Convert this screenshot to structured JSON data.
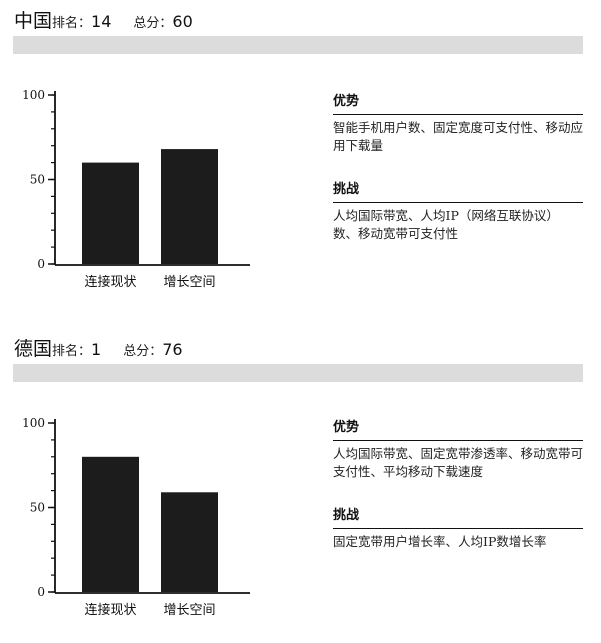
{
  "colors": {
    "bar": "#1c1c1c",
    "header_band": "#dcdcdc"
  },
  "countries": [
    {
      "name": "中国",
      "rank_label": "排名：",
      "rank": "14",
      "score_label": "总分：",
      "score": "60",
      "strengths_title": "优势",
      "strengths_text": "智能手机用户数、固定宽度可支付性、移动应用下载量",
      "challenges_title": "挑战",
      "challenges_text": "人均国际带宽、人均IP（网络互联协议）数、移动宽带可支付性"
    },
    {
      "name": "德国",
      "rank_label": "排名：",
      "rank": "1",
      "score_label": "总分：",
      "score": "76",
      "strengths_title": "优势",
      "strengths_text": "人均国际带宽、固定宽带渗透率、移动宽带可支付性、平均移动下载速度",
      "challenges_title": "挑战",
      "challenges_text": "固定宽带用户增长率、人均IP数增长率"
    }
  ],
  "chart_data": [
    {
      "type": "bar",
      "categories": [
        "连接现状",
        "增长空间"
      ],
      "values": [
        60,
        68
      ],
      "ylim": [
        0,
        100
      ],
      "yticks": [
        0,
        50,
        100
      ],
      "minor_step": 10
    },
    {
      "type": "bar",
      "categories": [
        "连接现状",
        "增长空间"
      ],
      "values": [
        80,
        59
      ],
      "ylim": [
        0,
        100
      ],
      "yticks": [
        0,
        50,
        100
      ],
      "minor_step": 10
    }
  ]
}
